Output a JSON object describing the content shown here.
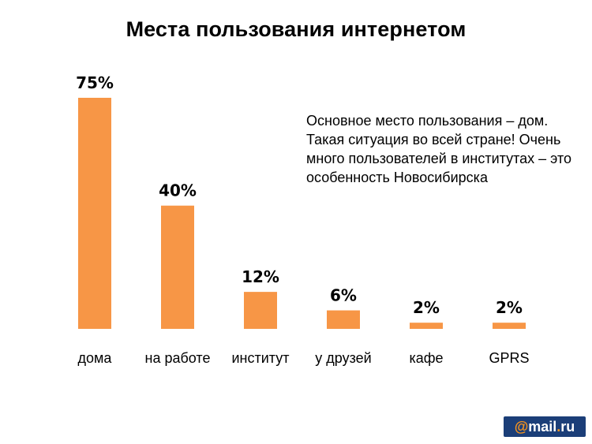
{
  "title": "Места пользования интернетом",
  "annotation": "Основное место пользования – дом. Такая ситуация во всей стране! Очень много пользователей в институтах – это особенность Новосибирска",
  "logo": {
    "text": "@mail.ru"
  },
  "colors": {
    "bar": "#f79646",
    "logo_bg": "#1b3e78",
    "logo_accent": "#f7941d"
  },
  "chart_data": {
    "type": "bar",
    "categories": [
      "дома",
      "на работе",
      "институт",
      "у друзей",
      "кафе",
      "GPRS"
    ],
    "values": [
      75,
      40,
      12,
      6,
      2,
      2
    ],
    "value_labels": [
      "75%",
      "40%",
      "12%",
      "6%",
      "2%",
      "2%"
    ],
    "title": "Места пользования интернетом",
    "xlabel": "",
    "ylabel": "",
    "ylim": [
      0,
      75
    ],
    "grid": false,
    "legend": "none"
  }
}
